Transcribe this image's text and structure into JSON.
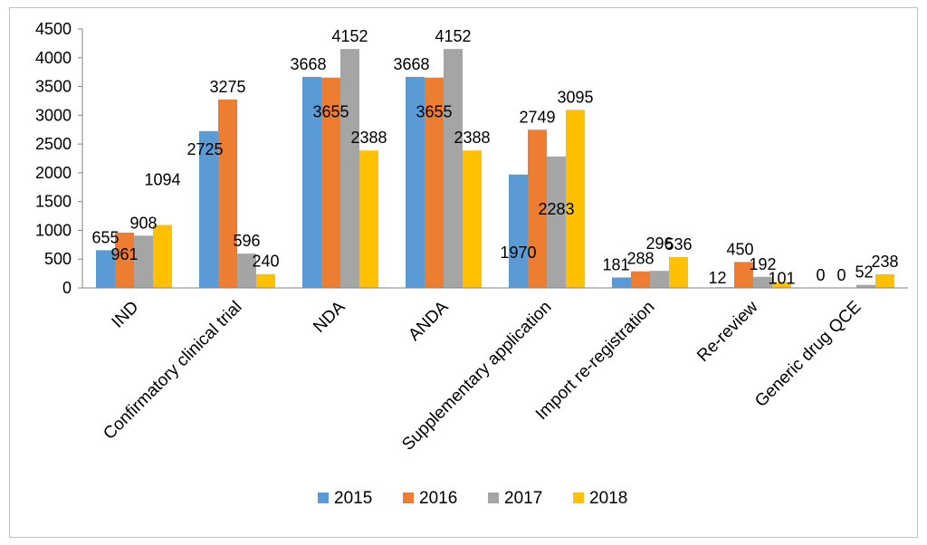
{
  "chart_data": {
    "type": "bar",
    "title": "",
    "xlabel": "",
    "ylabel": "",
    "ylim": [
      0,
      4500
    ],
    "yticks": [
      0,
      500,
      1000,
      1500,
      2000,
      2500,
      3000,
      3500,
      4000,
      4500
    ],
    "grid": false,
    "legend_position": "bottom",
    "categories": [
      "IND",
      "Confirmatory clinical trial",
      "NDA",
      "ANDA",
      "Supplementary application",
      "Import re-registration",
      "Re-review",
      "Generic drug QCE"
    ],
    "series": [
      {
        "name": "2015",
        "color": "#5B9BD5",
        "values": [
          655,
          2725,
          3668,
          3668,
          1970,
          181,
          12,
          0
        ]
      },
      {
        "name": "2016",
        "color": "#ED7D31",
        "values": [
          961,
          3275,
          3655,
          3655,
          2749,
          288,
          450,
          0
        ]
      },
      {
        "name": "2017",
        "color": "#A5A5A5",
        "values": [
          908,
          596,
          4152,
          4152,
          2283,
          296,
          192,
          52
        ]
      },
      {
        "name": "2018",
        "color": "#FFC000",
        "values": [
          1094,
          240,
          2388,
          2388,
          3095,
          536,
          101,
          238
        ]
      }
    ]
  }
}
